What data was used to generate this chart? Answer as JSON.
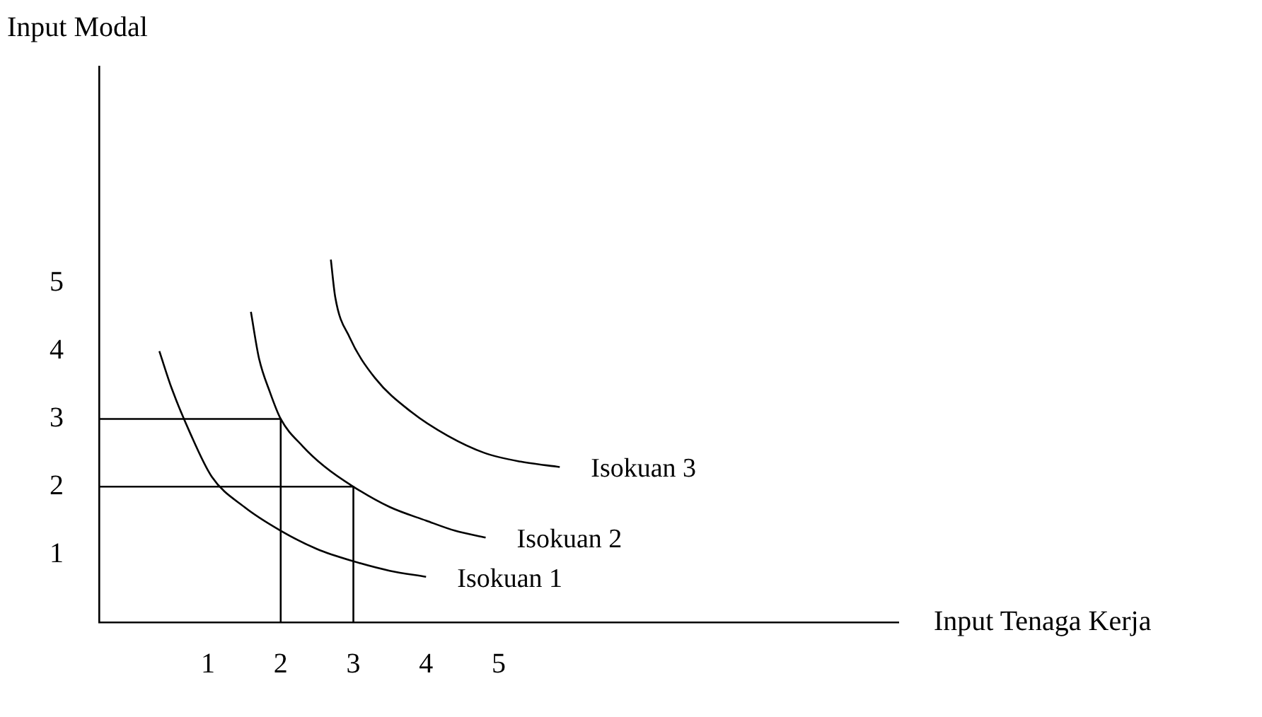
{
  "chart_data": {
    "type": "line",
    "xlabel": "Input Tenaga Kerja",
    "ylabel": "Input Modal",
    "xlim": [
      -0.5,
      10.5
    ],
    "ylim": [
      0,
      8.2
    ],
    "xticks": [
      1,
      2,
      3,
      4,
      5
    ],
    "yticks": [
      1,
      2,
      3,
      4,
      5
    ],
    "grid": false,
    "legend": false,
    "marker": "none",
    "line_style": "solid",
    "series": [
      {
        "name": "Isokuan 1",
        "color": "#000000",
        "x": [
          0.33,
          0.5,
          0.75,
          1.05,
          1.5,
          2.0,
          2.5,
          3.0,
          3.5,
          4.0
        ],
        "values": [
          4.0,
          3.45,
          2.8,
          2.15,
          1.7,
          1.35,
          1.08,
          0.9,
          0.76,
          0.67
        ]
      },
      {
        "name": "Isokuan 2",
        "color": "#000000",
        "x": [
          1.59,
          1.7,
          1.85,
          2.0,
          2.3,
          2.6,
          3.0,
          3.5,
          4.0,
          4.4,
          4.82
        ],
        "values": [
          4.58,
          3.9,
          3.4,
          3.0,
          2.6,
          2.3,
          2.0,
          1.7,
          1.5,
          1.35,
          1.25
        ]
      },
      {
        "name": "Isokuan 3",
        "color": "#000000",
        "x": [
          2.69,
          2.75,
          2.95,
          3.3,
          3.8,
          4.3,
          4.8,
          5.3,
          5.84
        ],
        "values": [
          5.35,
          4.8,
          4.2,
          3.6,
          3.1,
          2.75,
          2.5,
          2.37,
          2.29
        ]
      },
      {
        "color": "#000000",
        "x": [
          -0.5,
          2,
          2
        ],
        "values": [
          3,
          3,
          0
        ]
      },
      {
        "color": "#000000",
        "x": [
          -0.5,
          3,
          3
        ],
        "values": [
          2,
          2,
          0
        ]
      }
    ]
  }
}
